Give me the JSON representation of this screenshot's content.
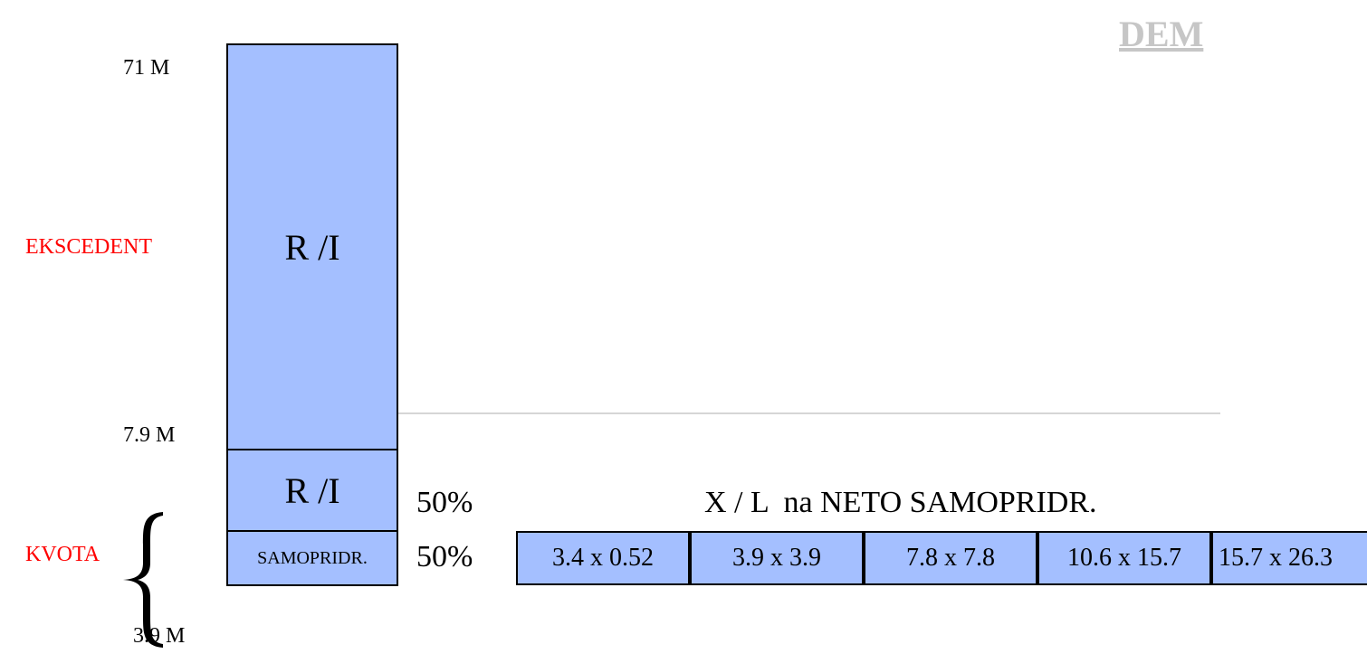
{
  "corner_label": "DEM",
  "levels": {
    "top": "71 M",
    "middle": "7.9 M",
    "bottom": "3.9 M"
  },
  "sections": {
    "excess": "EKSCEDENT",
    "quota": "KVOTA"
  },
  "column": {
    "excess_block": "R /I",
    "quota_ri_block": "R /I",
    "retention_block": "SAMOPRIDR."
  },
  "shares": {
    "ri_share": "50%",
    "retention_share": "50%"
  },
  "ratio_row": {
    "title": "X / L  na NETO SAMOPRIDR.",
    "cells": [
      "3.4 x 0.52",
      "3.9 x 3.9",
      "7.8 x 7.8",
      "10.6 x 15.7",
      "15.7 x 26.3"
    ]
  },
  "colors": {
    "block_fill": "#a4bfff",
    "section_label": "#ff0000",
    "corner_label": "#c6c6c6"
  }
}
